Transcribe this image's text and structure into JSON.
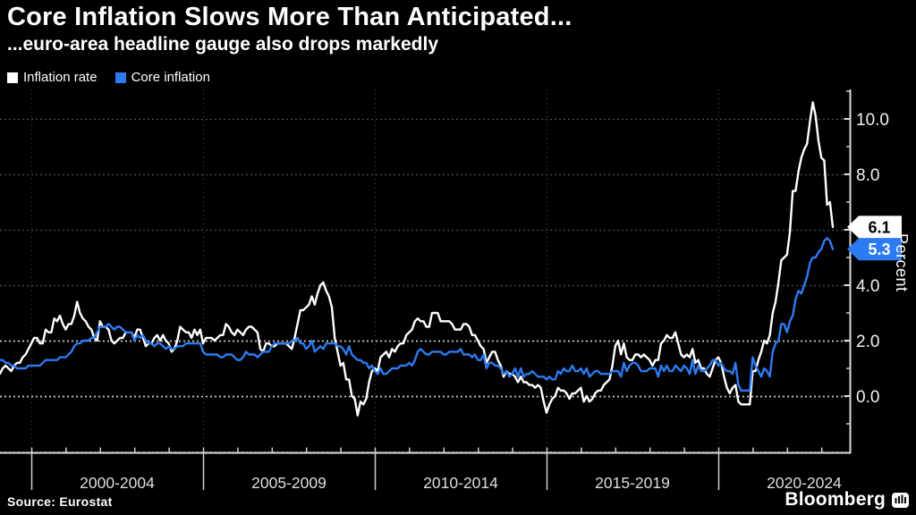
{
  "header": {
    "title": "Core Inflation Slows More Than Anticipated...",
    "subtitle": "...euro-area headline gauge also drops markedly"
  },
  "legend": [
    {
      "label": "Inflation rate",
      "color": "#ffffff"
    },
    {
      "label": "Core inflation",
      "color": "#2c7bf2"
    }
  ],
  "source": "Source: Eurostat",
  "branding": {
    "logo_text": "Bloomberg",
    "icon": "bloomberg-bars-icon"
  },
  "chart_data": {
    "type": "line",
    "title": "Core Inflation Slows More Than Anticipated...",
    "subtitle": "...euro-area headline gauge also drops markedly",
    "source": "Source: Eurostat",
    "frequency": "monthly",
    "x_start_year": 1999,
    "x_start_month": 1,
    "x_end": "2023-05",
    "x_axis": {
      "group_boundary_years": [
        2000,
        2005,
        2010,
        2015,
        2020
      ],
      "group_labels": [
        "2000-2004",
        "2005-2009",
        "2010-2014",
        "2015-2019",
        "2020-2024"
      ],
      "minor_tick_years_range": [
        2000,
        2023
      ]
    },
    "y_axis": {
      "label": "Percent",
      "tick_labels": [
        "10.0",
        "8.0",
        "4.0",
        "2.0",
        "0.0"
      ],
      "tick_label_values": [
        10,
        8,
        4,
        2,
        0
      ],
      "major_tick_values": [
        10,
        8,
        6,
        4,
        2,
        0
      ],
      "minor_tick_values": [
        11,
        9,
        7,
        5,
        3,
        1,
        -1
      ],
      "gridline_values": [
        -2,
        0,
        2,
        4,
        6,
        8,
        10
      ],
      "highlight_gridlines": [
        0,
        2
      ],
      "range": [
        -2.0,
        11.0
      ]
    },
    "end_labels": [
      {
        "text": "6.1",
        "value": 6.1,
        "bg": "#ffffff",
        "fg": "#000000"
      },
      {
        "text": "5.3",
        "value": 5.3,
        "bg": "#2c7bf2",
        "fg": "#ffffff"
      }
    ],
    "series": [
      {
        "name": "Inflation rate",
        "color": "#ffffff",
        "values": [
          0.8,
          0.8,
          1.0,
          1.1,
          1.0,
          0.9,
          1.1,
          1.2,
          1.2,
          1.4,
          1.5,
          1.7,
          1.9,
          2.1,
          2.1,
          1.9,
          1.9,
          2.4,
          2.3,
          2.3,
          2.8,
          2.7,
          2.9,
          2.6,
          2.4,
          2.6,
          2.6,
          2.9,
          3.4,
          3.0,
          2.8,
          2.7,
          2.5,
          2.4,
          2.1,
          2.0,
          2.7,
          2.5,
          2.5,
          2.4,
          2.0,
          1.9,
          2.0,
          2.1,
          2.1,
          2.3,
          2.3,
          2.3,
          2.1,
          2.4,
          2.4,
          2.1,
          1.8,
          1.9,
          1.9,
          2.1,
          2.2,
          2.0,
          2.2,
          2.0,
          1.9,
          1.6,
          1.7,
          2.0,
          2.5,
          2.4,
          2.3,
          2.3,
          2.1,
          2.4,
          2.2,
          2.4,
          1.9,
          2.1,
          2.1,
          2.1,
          2.0,
          2.1,
          2.2,
          2.2,
          2.6,
          2.5,
          2.3,
          2.2,
          2.4,
          2.3,
          2.2,
          2.4,
          2.5,
          2.5,
          2.4,
          2.3,
          1.7,
          1.6,
          1.9,
          1.9,
          1.8,
          1.8,
          1.9,
          1.9,
          1.9,
          1.9,
          1.8,
          1.7,
          2.1,
          2.6,
          3.1,
          3.1,
          3.2,
          3.3,
          3.6,
          3.3,
          3.7,
          4.0,
          4.1,
          3.8,
          3.6,
          3.2,
          2.1,
          1.6,
          1.1,
          1.2,
          0.6,
          0.6,
          0.0,
          -0.1,
          -0.7,
          -0.2,
          -0.3,
          -0.1,
          0.5,
          0.9,
          1.0,
          0.9,
          1.4,
          1.5,
          1.6,
          1.4,
          1.7,
          1.6,
          1.8,
          1.9,
          1.9,
          2.2,
          2.3,
          2.4,
          2.7,
          2.8,
          2.7,
          2.7,
          2.5,
          2.5,
          3.0,
          3.0,
          3.0,
          2.7,
          2.7,
          2.7,
          2.7,
          2.6,
          2.4,
          2.4,
          2.4,
          2.6,
          2.6,
          2.5,
          2.2,
          2.2,
          2.0,
          1.8,
          1.7,
          1.2,
          1.4,
          1.6,
          1.6,
          1.3,
          1.1,
          0.7,
          0.9,
          0.8,
          0.8,
          0.7,
          0.5,
          0.7,
          0.5,
          0.5,
          0.4,
          0.4,
          0.3,
          0.4,
          0.3,
          -0.2,
          -0.6,
          -0.3,
          -0.1,
          0.0,
          0.3,
          0.2,
          0.2,
          0.1,
          -0.1,
          0.1,
          0.1,
          0.2,
          0.3,
          -0.2,
          0.0,
          -0.2,
          -0.1,
          0.1,
          0.2,
          0.2,
          0.4,
          0.5,
          0.6,
          1.1,
          1.8,
          2.0,
          1.5,
          1.9,
          1.4,
          1.3,
          1.3,
          1.5,
          1.5,
          1.4,
          1.5,
          1.4,
          1.3,
          1.1,
          1.3,
          1.3,
          1.9,
          2.0,
          2.2,
          2.1,
          2.1,
          2.3,
          1.9,
          1.5,
          1.4,
          1.5,
          1.4,
          1.7,
          1.2,
          1.3,
          1.0,
          1.0,
          0.8,
          0.7,
          1.0,
          1.3,
          1.4,
          1.2,
          0.7,
          0.3,
          0.1,
          0.3,
          0.4,
          -0.2,
          -0.3,
          -0.3,
          -0.3,
          -0.3,
          0.9,
          0.9,
          1.3,
          1.6,
          2.0,
          1.9,
          2.2,
          3.0,
          3.4,
          4.1,
          4.9,
          5.0,
          5.1,
          5.9,
          7.4,
          7.4,
          8.1,
          8.6,
          8.9,
          9.1,
          9.9,
          10.6,
          10.1,
          9.2,
          8.6,
          8.5,
          6.9,
          7.0,
          6.1
        ]
      },
      {
        "name": "Core inflation",
        "color": "#2c7bf2",
        "values": [
          1.4,
          1.3,
          1.3,
          1.2,
          1.2,
          1.1,
          1.1,
          1.0,
          1.0,
          1.0,
          1.0,
          1.1,
          1.1,
          1.1,
          1.1,
          1.1,
          1.2,
          1.3,
          1.3,
          1.3,
          1.3,
          1.3,
          1.4,
          1.4,
          1.4,
          1.5,
          1.6,
          1.8,
          1.9,
          1.9,
          2.0,
          2.0,
          2.0,
          2.1,
          2.1,
          2.3,
          2.5,
          2.5,
          2.5,
          2.6,
          2.5,
          2.4,
          2.5,
          2.5,
          2.4,
          2.3,
          2.3,
          2.3,
          2.0,
          2.2,
          2.1,
          2.2,
          2.0,
          1.9,
          1.9,
          1.8,
          1.9,
          1.9,
          1.8,
          1.7,
          1.8,
          1.7,
          1.7,
          1.8,
          1.8,
          1.8,
          1.9,
          1.9,
          1.9,
          1.9,
          1.9,
          1.9,
          1.6,
          1.5,
          1.5,
          1.5,
          1.5,
          1.5,
          1.4,
          1.4,
          1.5,
          1.5,
          1.5,
          1.4,
          1.3,
          1.3,
          1.4,
          1.6,
          1.5,
          1.5,
          1.5,
          1.4,
          1.5,
          1.6,
          1.6,
          1.6,
          1.8,
          1.9,
          1.9,
          1.9,
          1.9,
          1.9,
          1.9,
          2.0,
          2.0,
          2.1,
          1.9,
          1.9,
          1.7,
          1.8,
          2.0,
          1.6,
          1.7,
          1.8,
          1.7,
          1.9,
          1.9,
          1.9,
          1.9,
          1.8,
          1.8,
          1.7,
          1.5,
          1.8,
          1.5,
          1.4,
          1.3,
          1.3,
          1.2,
          1.2,
          1.0,
          1.1,
          0.9,
          0.8,
          1.0,
          0.8,
          0.8,
          0.9,
          1.0,
          1.0,
          1.0,
          1.1,
          1.1,
          1.1,
          1.2,
          1.1,
          1.3,
          1.6,
          1.7,
          1.6,
          1.5,
          1.5,
          1.6,
          1.6,
          1.6,
          1.6,
          1.5,
          1.5,
          1.6,
          1.6,
          1.6,
          1.6,
          1.7,
          1.5,
          1.5,
          1.5,
          1.4,
          1.5,
          1.3,
          1.3,
          1.5,
          1.0,
          1.2,
          1.2,
          1.1,
          1.1,
          1.0,
          0.8,
          0.9,
          0.7,
          0.8,
          1.0,
          0.7,
          1.0,
          0.7,
          0.8,
          0.8,
          0.9,
          0.8,
          0.7,
          0.7,
          0.7,
          0.6,
          0.7,
          0.6,
          0.6,
          0.9,
          0.8,
          1.0,
          0.9,
          0.9,
          1.1,
          0.9,
          0.9,
          1.0,
          0.8,
          1.0,
          0.7,
          0.8,
          0.9,
          0.9,
          0.8,
          0.8,
          0.8,
          0.8,
          0.9,
          0.9,
          0.9,
          0.7,
          1.2,
          0.9,
          1.1,
          1.2,
          1.2,
          1.1,
          0.9,
          0.9,
          0.9,
          1.0,
          1.0,
          1.0,
          0.7,
          1.1,
          0.9,
          1.1,
          0.9,
          0.9,
          1.1,
          1.0,
          0.9,
          1.1,
          1.0,
          0.8,
          1.3,
          0.8,
          1.1,
          0.9,
          0.9,
          1.0,
          1.1,
          1.3,
          1.3,
          1.1,
          1.2,
          1.0,
          0.9,
          0.9,
          0.8,
          1.2,
          0.4,
          0.2,
          0.2,
          0.2,
          0.2,
          1.4,
          1.1,
          0.9,
          0.7,
          1.0,
          0.9,
          0.7,
          1.6,
          1.9,
          2.0,
          2.6,
          2.6,
          2.3,
          2.7,
          2.9,
          3.5,
          3.8,
          3.7,
          4.0,
          4.3,
          4.8,
          5.0,
          5.0,
          5.2,
          5.3,
          5.6,
          5.7,
          5.6,
          5.3
        ]
      }
    ]
  }
}
